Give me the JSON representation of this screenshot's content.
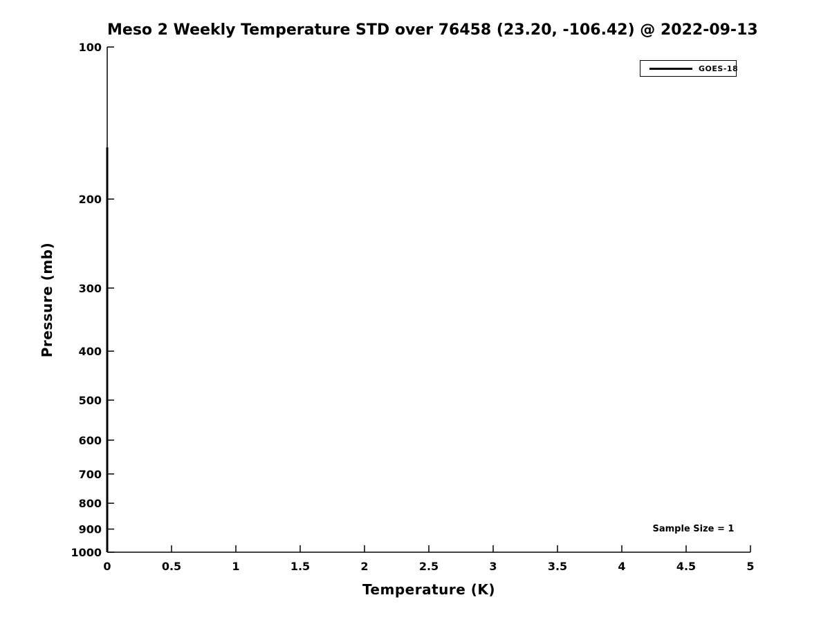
{
  "figure": {
    "background_color": "#ffffff",
    "foreground_color": "#000000"
  },
  "chart_data": {
    "type": "line",
    "title": "Meso 2 Weekly Temperature STD over 76458 (23.20, -106.42) @ 2022-09-13",
    "xlabel": "Temperature (K)",
    "ylabel": "Pressure (mb)",
    "xlim": [
      0,
      5
    ],
    "ylim": [
      100,
      1000
    ],
    "y_scale": "log",
    "y_inverted": true,
    "grid": false,
    "box": false,
    "x_ticks": [
      0,
      0.5,
      1,
      1.5,
      2,
      2.5,
      3,
      3.5,
      4,
      4.5,
      5
    ],
    "x_tick_labels": [
      "0",
      "0.5",
      "1",
      "1.5",
      "2",
      "2.5",
      "3",
      "3.5",
      "4",
      "4.5",
      "5"
    ],
    "y_ticks": [
      100,
      200,
      300,
      400,
      500,
      600,
      700,
      800,
      900,
      1000
    ],
    "y_tick_labels": [
      "100",
      "200",
      "300",
      "400",
      "500",
      "600",
      "700",
      "800",
      "900",
      "1000"
    ],
    "legend_position": "top-right",
    "series": [
      {
        "name": "GOES-18",
        "color": "#000000",
        "line_width": 3,
        "points": [
          {
            "temperature": 0,
            "pressure": 158
          },
          {
            "temperature": 0,
            "pressure": 1000
          }
        ]
      }
    ],
    "annotations": [
      {
        "text": "Sample Size = 1",
        "x": 4.6,
        "y": 905
      }
    ]
  }
}
